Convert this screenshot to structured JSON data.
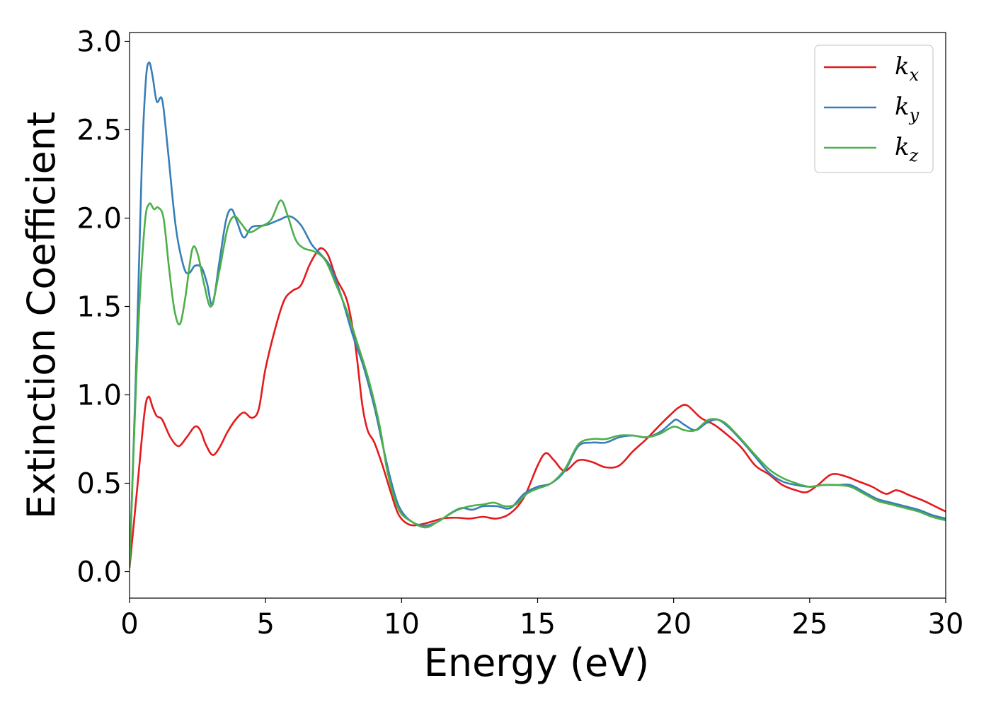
{
  "chart_data": {
    "type": "line",
    "xlabel": "Energy (eV)",
    "ylabel": "Extinction Coefficient",
    "xlim": [
      0,
      30
    ],
    "ylim": [
      -0.15,
      3.05
    ],
    "xticks": [
      0,
      5,
      10,
      15,
      20,
      25,
      30
    ],
    "yticks": [
      0.0,
      0.5,
      1.0,
      1.5,
      2.0,
      2.5,
      3.0
    ],
    "xtick_labels": [
      "0",
      "5",
      "10",
      "15",
      "20",
      "25",
      "30"
    ],
    "ytick_labels": [
      "0.0",
      "0.5",
      "1.0",
      "1.5",
      "2.0",
      "2.5",
      "3.0"
    ],
    "grid": false,
    "legend_position": "top-right",
    "series": [
      {
        "name": "k_x",
        "label_base": "k",
        "label_sub": "x",
        "color": "#e41a1c",
        "points": [
          [
            0,
            0.02
          ],
          [
            0.3,
            0.5
          ],
          [
            0.55,
            0.9
          ],
          [
            0.7,
            0.99
          ],
          [
            0.85,
            0.93
          ],
          [
            1.0,
            0.88
          ],
          [
            1.2,
            0.86
          ],
          [
            1.5,
            0.76
          ],
          [
            1.8,
            0.71
          ],
          [
            2.1,
            0.76
          ],
          [
            2.4,
            0.82
          ],
          [
            2.6,
            0.8
          ],
          [
            2.8,
            0.72
          ],
          [
            3.05,
            0.66
          ],
          [
            3.3,
            0.7
          ],
          [
            3.6,
            0.79
          ],
          [
            3.9,
            0.86
          ],
          [
            4.2,
            0.9
          ],
          [
            4.5,
            0.87
          ],
          [
            4.75,
            0.92
          ],
          [
            5.0,
            1.15
          ],
          [
            5.4,
            1.4
          ],
          [
            5.7,
            1.54
          ],
          [
            6.0,
            1.59
          ],
          [
            6.3,
            1.62
          ],
          [
            6.6,
            1.73
          ],
          [
            6.85,
            1.8
          ],
          [
            7.05,
            1.83
          ],
          [
            7.3,
            1.79
          ],
          [
            7.6,
            1.66
          ],
          [
            8.0,
            1.53
          ],
          [
            8.3,
            1.28
          ],
          [
            8.55,
            0.95
          ],
          [
            8.75,
            0.8
          ],
          [
            9.0,
            0.73
          ],
          [
            9.3,
            0.6
          ],
          [
            9.6,
            0.45
          ],
          [
            9.9,
            0.32
          ],
          [
            10.3,
            0.265
          ],
          [
            10.8,
            0.27
          ],
          [
            11.5,
            0.3
          ],
          [
            12.0,
            0.305
          ],
          [
            12.5,
            0.3
          ],
          [
            13.0,
            0.31
          ],
          [
            13.5,
            0.3
          ],
          [
            14.0,
            0.33
          ],
          [
            14.5,
            0.42
          ],
          [
            15.0,
            0.6
          ],
          [
            15.3,
            0.67
          ],
          [
            15.6,
            0.63
          ],
          [
            16.0,
            0.57
          ],
          [
            16.5,
            0.63
          ],
          [
            17.0,
            0.62
          ],
          [
            17.5,
            0.59
          ],
          [
            18.0,
            0.6
          ],
          [
            18.5,
            0.68
          ],
          [
            19.0,
            0.75
          ],
          [
            19.5,
            0.83
          ],
          [
            19.9,
            0.89
          ],
          [
            20.2,
            0.93
          ],
          [
            20.5,
            0.94
          ],
          [
            21.0,
            0.87
          ],
          [
            21.5,
            0.83
          ],
          [
            22.0,
            0.77
          ],
          [
            22.5,
            0.7
          ],
          [
            23.0,
            0.6
          ],
          [
            23.5,
            0.55
          ],
          [
            24.0,
            0.49
          ],
          [
            24.5,
            0.46
          ],
          [
            24.9,
            0.45
          ],
          [
            25.3,
            0.49
          ],
          [
            25.8,
            0.55
          ],
          [
            26.3,
            0.54
          ],
          [
            26.8,
            0.51
          ],
          [
            27.3,
            0.48
          ],
          [
            27.8,
            0.44
          ],
          [
            28.2,
            0.46
          ],
          [
            28.7,
            0.43
          ],
          [
            29.2,
            0.4
          ],
          [
            29.6,
            0.37
          ],
          [
            30.0,
            0.34
          ]
        ]
      },
      {
        "name": "k_y",
        "label_base": "k",
        "label_sub": "y",
        "color": "#377eb8",
        "points": [
          [
            0,
            0.02
          ],
          [
            0.25,
            1.2
          ],
          [
            0.45,
            2.3
          ],
          [
            0.6,
            2.78
          ],
          [
            0.72,
            2.88
          ],
          [
            0.85,
            2.8
          ],
          [
            1.0,
            2.66
          ],
          [
            1.2,
            2.67
          ],
          [
            1.4,
            2.4
          ],
          [
            1.7,
            1.95
          ],
          [
            2.0,
            1.72
          ],
          [
            2.2,
            1.69
          ],
          [
            2.4,
            1.73
          ],
          [
            2.65,
            1.72
          ],
          [
            2.85,
            1.63
          ],
          [
            3.05,
            1.51
          ],
          [
            3.3,
            1.75
          ],
          [
            3.55,
            1.99
          ],
          [
            3.75,
            2.05
          ],
          [
            3.95,
            1.98
          ],
          [
            4.2,
            1.89
          ],
          [
            4.5,
            1.95
          ],
          [
            5.0,
            1.96
          ],
          [
            5.5,
            1.99
          ],
          [
            5.9,
            2.01
          ],
          [
            6.3,
            1.96
          ],
          [
            6.7,
            1.85
          ],
          [
            7.0,
            1.8
          ],
          [
            7.4,
            1.72
          ],
          [
            7.8,
            1.55
          ],
          [
            8.2,
            1.34
          ],
          [
            8.6,
            1.16
          ],
          [
            9.0,
            0.93
          ],
          [
            9.3,
            0.72
          ],
          [
            9.6,
            0.52
          ],
          [
            9.9,
            0.37
          ],
          [
            10.3,
            0.29
          ],
          [
            10.8,
            0.26
          ],
          [
            11.3,
            0.28
          ],
          [
            11.8,
            0.33
          ],
          [
            12.2,
            0.36
          ],
          [
            12.6,
            0.35
          ],
          [
            13.0,
            0.37
          ],
          [
            13.5,
            0.37
          ],
          [
            14.0,
            0.36
          ],
          [
            14.5,
            0.44
          ],
          [
            15.0,
            0.48
          ],
          [
            15.5,
            0.5
          ],
          [
            16.0,
            0.57
          ],
          [
            16.5,
            0.71
          ],
          [
            17.0,
            0.73
          ],
          [
            17.5,
            0.73
          ],
          [
            18.0,
            0.76
          ],
          [
            18.5,
            0.77
          ],
          [
            19.0,
            0.76
          ],
          [
            19.5,
            0.79
          ],
          [
            19.9,
            0.84
          ],
          [
            20.1,
            0.86
          ],
          [
            20.4,
            0.83
          ],
          [
            20.8,
            0.8
          ],
          [
            21.2,
            0.84
          ],
          [
            21.6,
            0.86
          ],
          [
            22.0,
            0.82
          ],
          [
            22.5,
            0.74
          ],
          [
            23.0,
            0.65
          ],
          [
            23.5,
            0.56
          ],
          [
            24.0,
            0.51
          ],
          [
            24.5,
            0.49
          ],
          [
            25.0,
            0.48
          ],
          [
            25.5,
            0.49
          ],
          [
            26.0,
            0.49
          ],
          [
            26.5,
            0.49
          ],
          [
            27.0,
            0.45
          ],
          [
            27.5,
            0.41
          ],
          [
            28.0,
            0.39
          ],
          [
            28.5,
            0.37
          ],
          [
            29.0,
            0.35
          ],
          [
            29.5,
            0.32
          ],
          [
            30.0,
            0.3
          ]
        ]
      },
      {
        "name": "k_z",
        "label_base": "k",
        "label_sub": "z",
        "color": "#4daf4a",
        "points": [
          [
            0,
            0.02
          ],
          [
            0.3,
            1.3
          ],
          [
            0.55,
            1.95
          ],
          [
            0.72,
            2.08
          ],
          [
            0.9,
            2.05
          ],
          [
            1.05,
            2.06
          ],
          [
            1.25,
            2.0
          ],
          [
            1.45,
            1.72
          ],
          [
            1.65,
            1.48
          ],
          [
            1.85,
            1.4
          ],
          [
            2.05,
            1.55
          ],
          [
            2.3,
            1.82
          ],
          [
            2.5,
            1.8
          ],
          [
            2.75,
            1.62
          ],
          [
            3.0,
            1.5
          ],
          [
            3.3,
            1.7
          ],
          [
            3.6,
            1.94
          ],
          [
            3.85,
            2.01
          ],
          [
            4.1,
            1.97
          ],
          [
            4.4,
            1.92
          ],
          [
            4.8,
            1.95
          ],
          [
            5.2,
            1.99
          ],
          [
            5.55,
            2.1
          ],
          [
            5.8,
            2.02
          ],
          [
            6.1,
            1.88
          ],
          [
            6.4,
            1.83
          ],
          [
            6.8,
            1.81
          ],
          [
            7.2,
            1.76
          ],
          [
            7.6,
            1.62
          ],
          [
            8.0,
            1.47
          ],
          [
            8.4,
            1.28
          ],
          [
            8.8,
            1.08
          ],
          [
            9.2,
            0.82
          ],
          [
            9.5,
            0.55
          ],
          [
            9.9,
            0.35
          ],
          [
            10.4,
            0.28
          ],
          [
            10.9,
            0.25
          ],
          [
            11.4,
            0.29
          ],
          [
            12.0,
            0.345
          ],
          [
            12.5,
            0.37
          ],
          [
            13.0,
            0.38
          ],
          [
            13.4,
            0.39
          ],
          [
            13.8,
            0.37
          ],
          [
            14.2,
            0.38
          ],
          [
            14.6,
            0.44
          ],
          [
            15.0,
            0.47
          ],
          [
            15.5,
            0.5
          ],
          [
            16.0,
            0.58
          ],
          [
            16.5,
            0.72
          ],
          [
            17.0,
            0.75
          ],
          [
            17.5,
            0.75
          ],
          [
            18.0,
            0.77
          ],
          [
            18.5,
            0.77
          ],
          [
            19.0,
            0.76
          ],
          [
            19.5,
            0.78
          ],
          [
            20.0,
            0.82
          ],
          [
            20.4,
            0.8
          ],
          [
            20.8,
            0.8
          ],
          [
            21.3,
            0.86
          ],
          [
            21.8,
            0.85
          ],
          [
            22.3,
            0.78
          ],
          [
            23.0,
            0.66
          ],
          [
            23.5,
            0.58
          ],
          [
            24.0,
            0.53
          ],
          [
            24.5,
            0.5
          ],
          [
            25.0,
            0.48
          ],
          [
            25.5,
            0.49
          ],
          [
            26.0,
            0.49
          ],
          [
            26.5,
            0.48
          ],
          [
            27.0,
            0.44
          ],
          [
            27.5,
            0.4
          ],
          [
            28.0,
            0.38
          ],
          [
            28.5,
            0.36
          ],
          [
            29.0,
            0.34
          ],
          [
            29.5,
            0.31
          ],
          [
            30.0,
            0.29
          ]
        ]
      }
    ]
  }
}
